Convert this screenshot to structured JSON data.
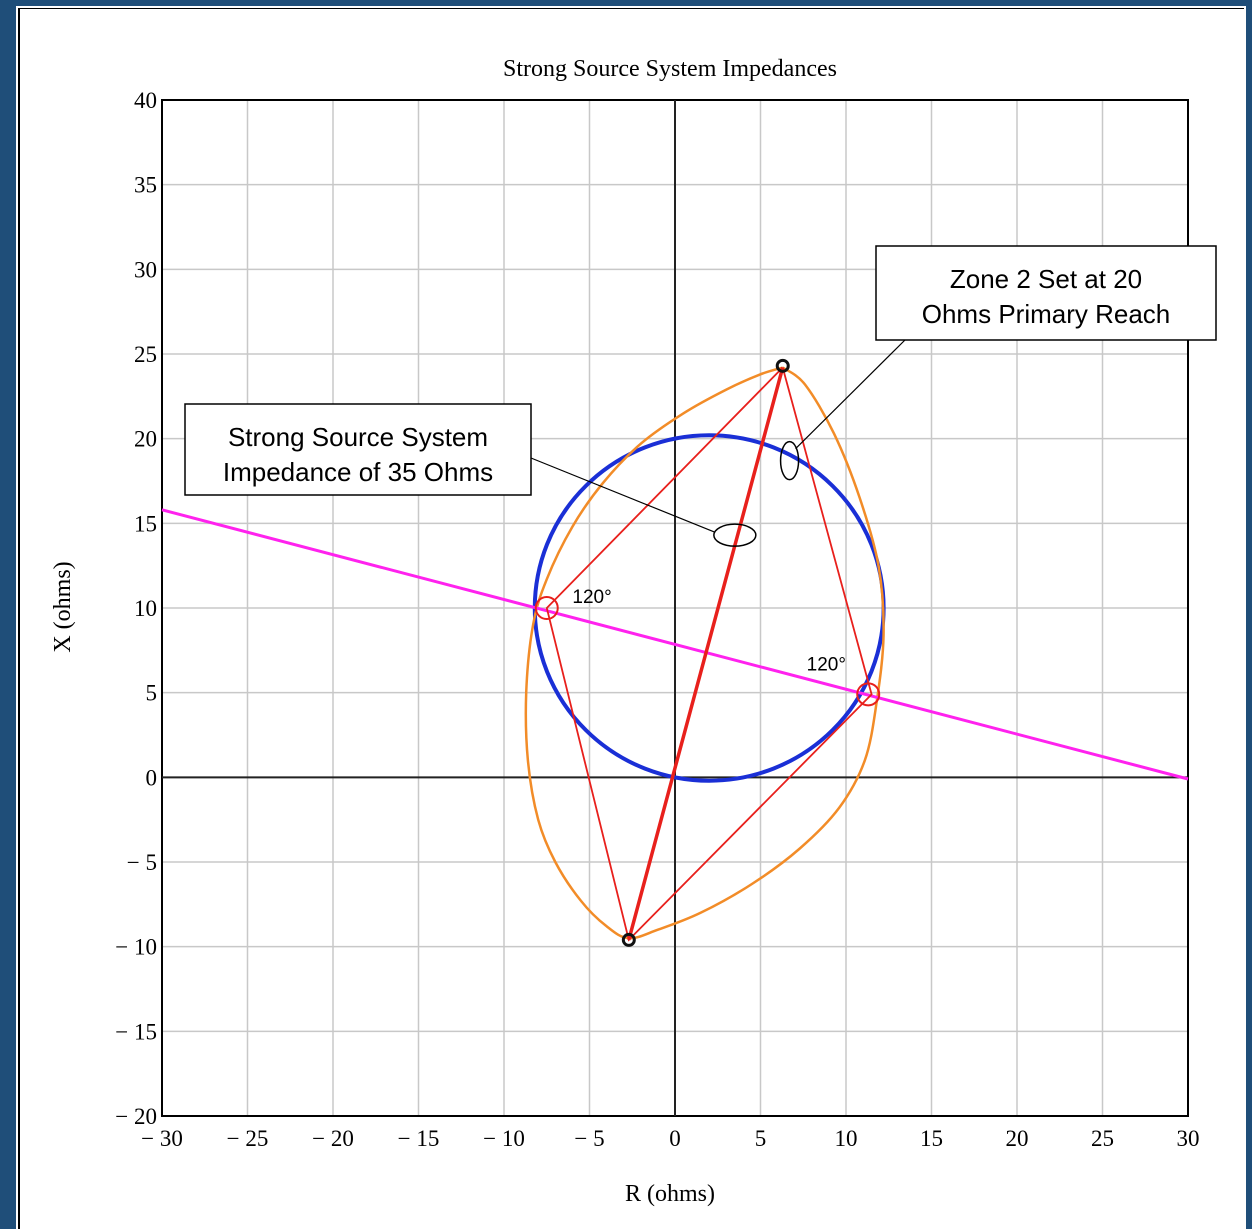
{
  "chart_data": {
    "type": "line",
    "title": "Strong Source System Impedances",
    "xlabel": "R (ohms)",
    "ylabel": "X (ohms)",
    "xlim": [
      -30,
      30
    ],
    "ylim": [
      -20,
      40
    ],
    "grid": true,
    "x_ticks": [
      -30,
      -25,
      -20,
      -15,
      -10,
      -5,
      0,
      5,
      10,
      15,
      20,
      25,
      30
    ],
    "y_ticks": [
      -20,
      -15,
      -10,
      -5,
      0,
      5,
      10,
      15,
      20,
      25,
      30,
      35,
      40
    ],
    "x_tick_labels": [
      "− 30",
      "− 25",
      "− 20",
      "− 15",
      "− 10",
      "− 5",
      "0",
      "5",
      "10",
      "15",
      "20",
      "25",
      "30"
    ],
    "y_tick_labels": [
      "− 20",
      "− 15",
      "− 10",
      "− 5",
      "0",
      "5",
      "10",
      "15",
      "20",
      "25",
      "30",
      "35",
      "40"
    ],
    "series": [
      {
        "kind": "circle",
        "color": "#1a2fd6",
        "center": [
          2,
          10
        ],
        "radius": 10.2
      },
      {
        "kind": "lens",
        "color": "#f28c28",
        "points": [
          [
            6.3,
            24.2
          ],
          [
            5.0,
            23.8
          ],
          [
            3.0,
            22.9
          ],
          [
            0.5,
            21.5
          ],
          [
            -2.0,
            19.7
          ],
          [
            -4.2,
            17.4
          ],
          [
            -6.0,
            14.8
          ],
          [
            -7.5,
            11.7
          ],
          [
            -8.3,
            9.0
          ],
          [
            -8.7,
            5.0
          ],
          [
            -8.6,
            1.0
          ],
          [
            -8.0,
            -2.5
          ],
          [
            -7.0,
            -5.0
          ],
          [
            -5.5,
            -7.3
          ],
          [
            -4.0,
            -8.8
          ],
          [
            -2.7,
            -9.5
          ],
          [
            -1.0,
            -9.0
          ],
          [
            1.5,
            -8.0
          ],
          [
            4.5,
            -6.3
          ],
          [
            7.3,
            -4.2
          ],
          [
            9.6,
            -1.8
          ],
          [
            11.1,
            1.0
          ],
          [
            11.8,
            4.5
          ],
          [
            12.2,
            8.5
          ],
          [
            11.9,
            12.5
          ],
          [
            10.8,
            16.5
          ],
          [
            9.3,
            20.3
          ],
          [
            7.6,
            23.2
          ],
          [
            6.3,
            24.2
          ]
        ]
      },
      {
        "kind": "line",
        "color": "#ff22ee",
        "points": [
          [
            -30,
            15.8
          ],
          [
            30,
            -0.1
          ]
        ]
      },
      {
        "kind": "polygon",
        "color": "#e8201c",
        "points": [
          [
            6.3,
            24.2
          ],
          [
            -7.5,
            10.0
          ],
          [
            -2.7,
            -9.6
          ],
          [
            11.5,
            4.9
          ],
          [
            6.3,
            24.2
          ]
        ]
      },
      {
        "kind": "diagonal",
        "color": "#e8201c",
        "points": [
          [
            -2.7,
            -9.6
          ],
          [
            6.3,
            24.2
          ]
        ]
      }
    ],
    "markers": [
      {
        "at": [
          6.3,
          24.3
        ],
        "kind": "dot"
      },
      {
        "at": [
          -2.7,
          -9.6
        ],
        "kind": "dot"
      },
      {
        "at": [
          -7.5,
          10.0
        ],
        "kind": "angle-circle"
      },
      {
        "at": [
          11.3,
          4.9
        ],
        "kind": "angle-circle"
      }
    ],
    "annotations": [
      {
        "label": "120°",
        "at": [
          -6.0,
          10.3
        ]
      },
      {
        "label": "120°",
        "at": [
          7.7,
          6.3
        ]
      }
    ],
    "callouts": [
      {
        "lines": [
          "Zone 2 Set at 20",
          "Ohms Primary Reach"
        ],
        "target": [
          6.7,
          18.7
        ]
      },
      {
        "lines": [
          "Strong Source System",
          "Impedance of 35 Ohms"
        ],
        "target": [
          3.5,
          14.3
        ]
      }
    ]
  }
}
